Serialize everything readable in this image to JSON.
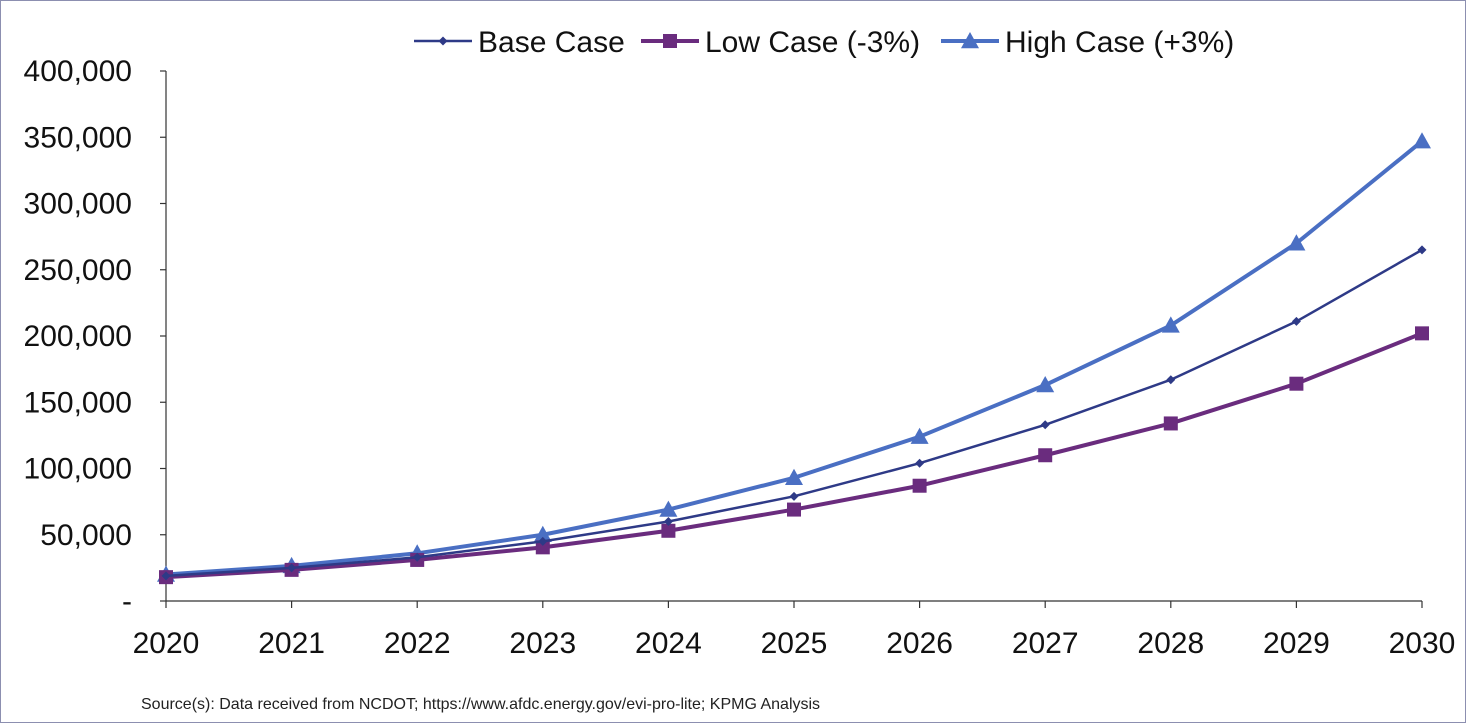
{
  "chart_data": {
    "type": "line",
    "categories": [
      "2020",
      "2021",
      "2022",
      "2023",
      "2024",
      "2025",
      "2026",
      "2027",
      "2028",
      "2029",
      "2030"
    ],
    "series": [
      {
        "name": "Base Case",
        "marker": "diamond",
        "color": "#2e3a87",
        "values": [
          19000,
          25000,
          33000,
          45000,
          60000,
          79000,
          104000,
          133000,
          167000,
          211000,
          265000
        ]
      },
      {
        "name": "Low Case (-3%)",
        "marker": "square",
        "color": "#6a2c7e",
        "values": [
          18000,
          23500,
          31000,
          40500,
          53000,
          69000,
          87000,
          110000,
          134000,
          164000,
          202000
        ]
      },
      {
        "name": "High Case (+3%)",
        "marker": "triangle",
        "color": "#4a6fc3",
        "values": [
          20000,
          26500,
          36000,
          50000,
          69000,
          93000,
          124000,
          163000,
          208000,
          270000,
          347000
        ]
      }
    ],
    "y_ticks": [
      0,
      50000,
      100000,
      150000,
      200000,
      250000,
      300000,
      350000,
      400000
    ],
    "y_tick_labels": [
      "-",
      "50,000",
      "100,000",
      "150,000",
      "200,000",
      "250,000",
      "300,000",
      "350,000",
      "400,000"
    ],
    "ylim": [
      0,
      400000
    ],
    "grid": false,
    "legend_position": "top",
    "source": "Source(s): Data received from NCDOT; https://www.afdc.energy.gov/evi-pro-lite; KPMG Analysis"
  }
}
